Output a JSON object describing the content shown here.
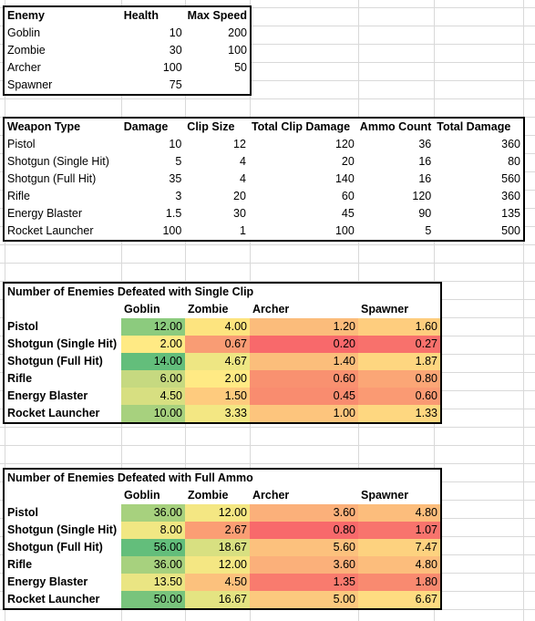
{
  "enemies": {
    "headers": [
      "Enemy",
      "Health",
      "Max Speed"
    ],
    "rows": [
      [
        "Goblin",
        "10",
        "200"
      ],
      [
        "Zombie",
        "30",
        "100"
      ],
      [
        "Archer",
        "100",
        "50"
      ],
      [
        "Spawner",
        "75",
        ""
      ]
    ]
  },
  "weapons": {
    "headers": [
      "Weapon Type",
      "Damage",
      "Clip Size",
      "Total Clip Damage",
      "Ammo Count",
      "Total Damage"
    ],
    "rows": [
      [
        "Pistol",
        "10",
        "12",
        "120",
        "36",
        "360"
      ],
      [
        "Shotgun (Single Hit)",
        "5",
        "4",
        "20",
        "16",
        "80"
      ],
      [
        "Shotgun (Full Hit)",
        "35",
        "4",
        "140",
        "16",
        "560"
      ],
      [
        "Rifle",
        "3",
        "20",
        "60",
        "120",
        "360"
      ],
      [
        "Energy Blaster",
        "1.5",
        "30",
        "45",
        "90",
        "135"
      ],
      [
        "Rocket Launcher",
        "100",
        "1",
        "100",
        "5",
        "500"
      ]
    ]
  },
  "single_clip": {
    "title": "Number of Enemies Defeated with Single Clip",
    "headers": [
      "",
      "Goblin",
      "Zombie",
      "Archer",
      "Spawner"
    ],
    "rows": [
      [
        "Pistol",
        "12.00",
        "4.00",
        "1.20",
        "1.60"
      ],
      [
        "Shotgun (Single Hit)",
        "2.00",
        "0.67",
        "0.20",
        "0.27"
      ],
      [
        "Shotgun (Full Hit)",
        "14.00",
        "4.67",
        "1.40",
        "1.87"
      ],
      [
        "Rifle",
        "6.00",
        "2.00",
        "0.60",
        "0.80"
      ],
      [
        "Energy Blaster",
        "4.50",
        "1.50",
        "0.45",
        "0.60"
      ],
      [
        "Rocket Launcher",
        "10.00",
        "3.33",
        "1.00",
        "1.33"
      ]
    ],
    "colors": [
      [
        "#8ccb7e",
        "#fde47f",
        "#fbbc7b",
        "#fecd7e"
      ],
      [
        "#ffea84",
        "#f99c74",
        "#f8696b",
        "#f8716c"
      ],
      [
        "#63be7b",
        "#eee683",
        "#fbbe7b",
        "#fed680"
      ],
      [
        "#c6d980",
        "#ffea84",
        "#f99170",
        "#fba676"
      ],
      [
        "#d7df81",
        "#fecb7e",
        "#f98c6f",
        "#fa9a73"
      ],
      [
        "#a7d17e",
        "#f3e783",
        "#fdc57d",
        "#fed780"
      ]
    ]
  },
  "full_ammo": {
    "title": "Number of Enemies Defeated with Full Ammo",
    "headers": [
      "",
      "Goblin",
      "Zombie",
      "Archer",
      "Spawner"
    ],
    "rows": [
      [
        "Pistol",
        "36.00",
        "12.00",
        "3.60",
        "4.80"
      ],
      [
        "Shotgun (Single Hit)",
        "8.00",
        "2.67",
        "0.80",
        "1.07"
      ],
      [
        "Shotgun (Full Hit)",
        "56.00",
        "18.67",
        "5.60",
        "7.47"
      ],
      [
        "Rifle",
        "36.00",
        "12.00",
        "3.60",
        "4.80"
      ],
      [
        "Energy Blaster",
        "13.50",
        "4.50",
        "1.35",
        "1.80"
      ],
      [
        "Rocket Launcher",
        "50.00",
        "16.67",
        "5.00",
        "6.67"
      ]
    ],
    "colors": [
      [
        "#a7d17e",
        "#f4e783",
        "#fbb07a",
        "#fcbd7c"
      ],
      [
        "#f1e783",
        "#fb9e74",
        "#f8696b",
        "#f8746d"
      ],
      [
        "#63be7b",
        "#d8e081",
        "#fcc17d",
        "#fdd27f"
      ],
      [
        "#a7d17e",
        "#f4e783",
        "#fbb07a",
        "#fcbd7c"
      ],
      [
        "#eae583",
        "#fcc17d",
        "#f97b6e",
        "#f98a70"
      ],
      [
        "#78c47c",
        "#e4e482",
        "#fcc97e",
        "#fedc81"
      ]
    ]
  }
}
